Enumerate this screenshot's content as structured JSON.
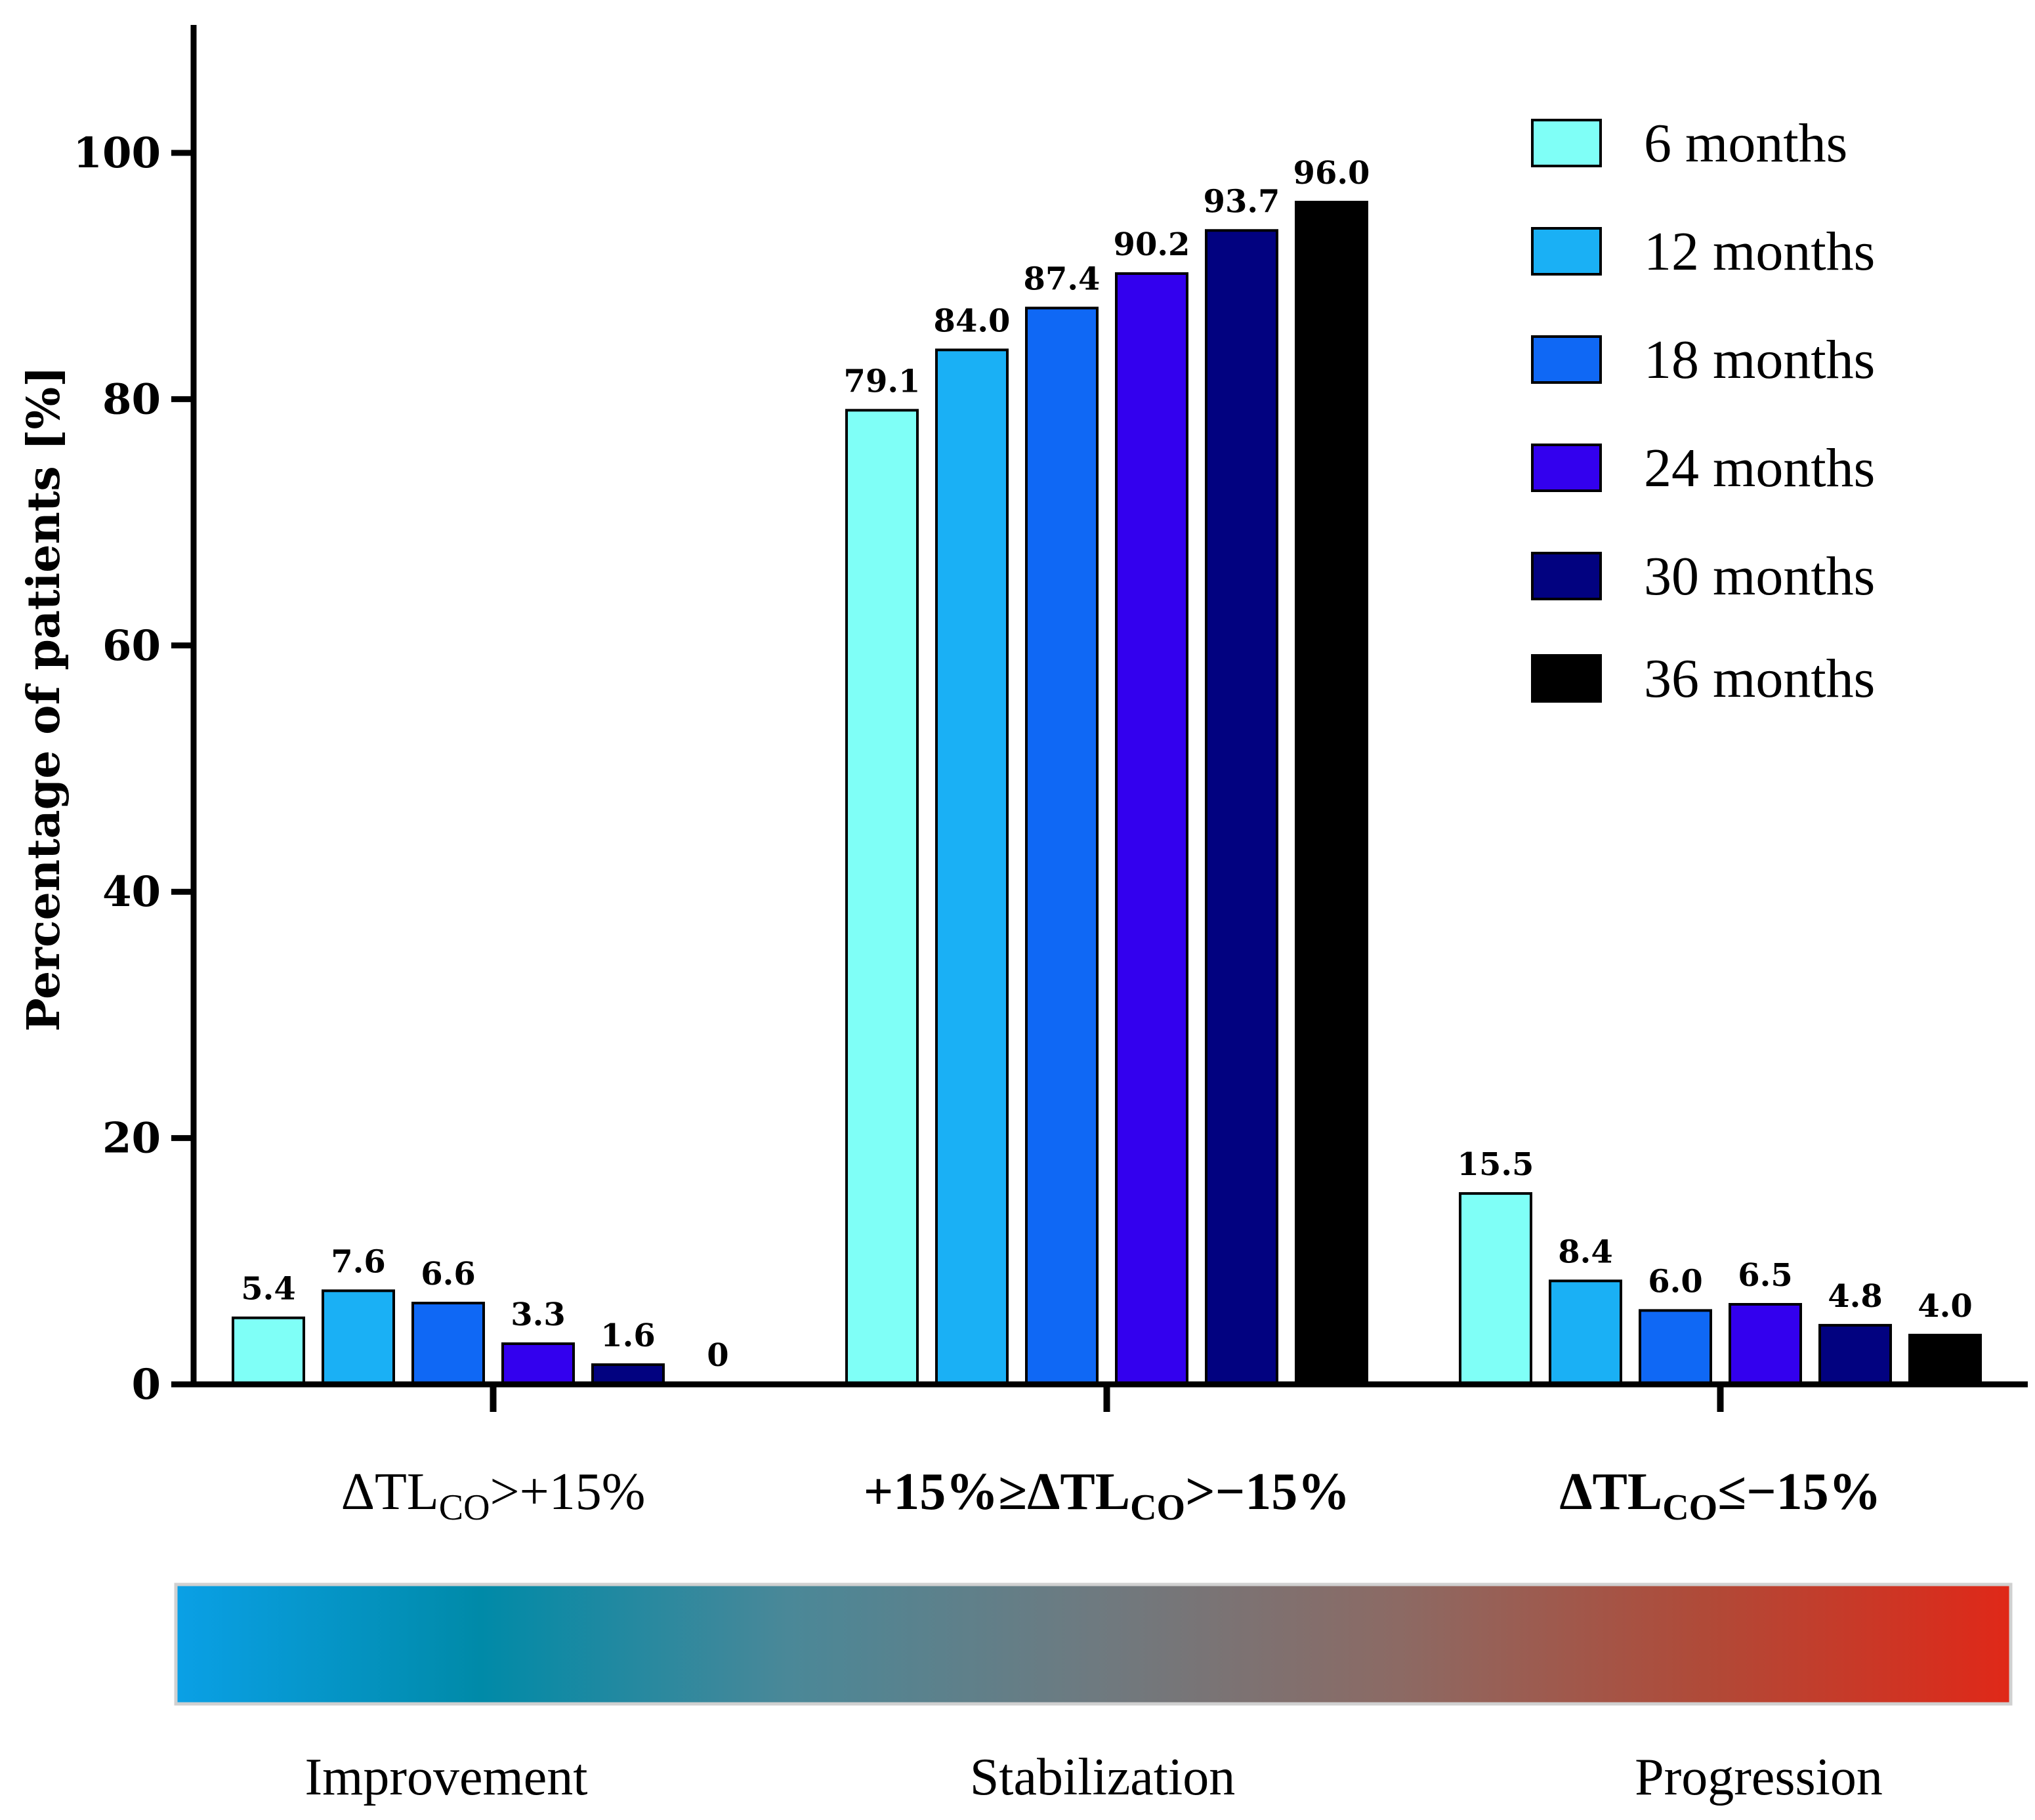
{
  "chart_data": {
    "type": "bar",
    "ylabel": "Percentage of patients [%]",
    "ylim": [
      0,
      110
    ],
    "yticks": [
      0,
      20,
      40,
      60,
      80,
      100
    ],
    "grid": false,
    "legend_position": "top-right",
    "categories": [
      {
        "prefix": "ΔTL",
        "sub": "CO",
        "suffix": ">+15%",
        "bold": false
      },
      {
        "prefix": "+15%≥ΔTL",
        "sub": "CO",
        "suffix": ">−15%",
        "bold": true
      },
      {
        "prefix": "ΔTL",
        "sub": "CO",
        "suffix": "≤−15%",
        "bold": true
      }
    ],
    "series": [
      {
        "name": "6 months",
        "color": "#7ffff7",
        "values": [
          5.4,
          79.1,
          15.5
        ],
        "labels": [
          "5.4",
          "79.1",
          "15.5"
        ]
      },
      {
        "name": "12 months",
        "color": "#1ab0f5",
        "values": [
          7.6,
          84.0,
          8.4
        ],
        "labels": [
          "7.6",
          "84.0",
          "8.4"
        ]
      },
      {
        "name": "18 months",
        "color": "#0f68f5",
        "values": [
          6.6,
          87.4,
          6.0
        ],
        "labels": [
          "6.6",
          "87.4",
          "6.0"
        ]
      },
      {
        "name": "24 months",
        "color": "#3300ee",
        "values": [
          3.3,
          90.2,
          6.5
        ],
        "labels": [
          "3.3",
          "90.2",
          "6.5"
        ]
      },
      {
        "name": "30 months",
        "color": "#020280",
        "values": [
          1.6,
          93.7,
          4.8
        ],
        "labels": [
          "1.6",
          "93.7",
          "4.8"
        ]
      },
      {
        "name": "36 months",
        "color": "#000000",
        "values": [
          0,
          96.0,
          4.0
        ],
        "labels": [
          "0",
          "96.0",
          "4.0"
        ]
      }
    ],
    "gradient_bar": {
      "colors": [
        "#0aa0e6",
        "#008aa8",
        "#4a8898",
        "#6e7a80",
        "#8c6a64",
        "#b04a38",
        "#e02818"
      ],
      "labels": [
        "Improvement",
        "Stabilization",
        "Progression"
      ]
    }
  }
}
